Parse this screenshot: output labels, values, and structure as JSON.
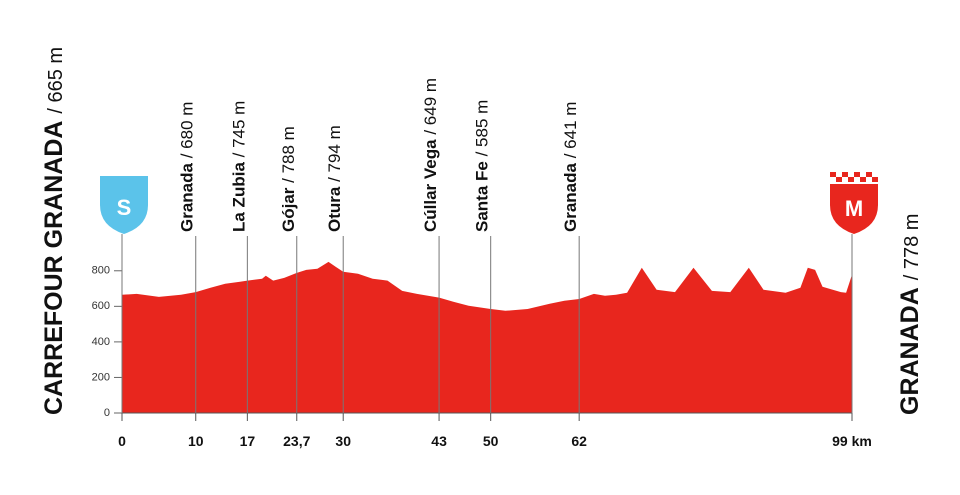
{
  "chart_data": {
    "type": "area",
    "color": "#e8261e",
    "x": [
      0,
      2,
      5,
      8,
      10,
      12,
      14,
      16,
      17,
      19,
      19.5,
      20.5,
      22,
      23.7,
      25,
      26.5,
      28,
      29,
      30,
      32,
      34,
      36,
      38,
      40,
      43,
      45,
      47,
      50,
      52,
      55,
      58,
      60,
      62,
      64,
      65.5,
      67,
      68.5,
      70.5,
      72.5,
      75,
      77.5,
      80,
      82.5,
      85,
      87,
      90,
      92,
      93,
      94,
      95,
      97.5,
      98.2,
      99
    ],
    "values": [
      665,
      670,
      653,
      665,
      680,
      705,
      727,
      738,
      745,
      755,
      772,
      745,
      760,
      788,
      805,
      811,
      850,
      822,
      794,
      783,
      755,
      745,
      687,
      670,
      649,
      625,
      603,
      585,
      575,
      585,
      614,
      631,
      641,
      670,
      659,
      665,
      676,
      817,
      693,
      680,
      817,
      687,
      680,
      817,
      693,
      676,
      705,
      817,
      805,
      710,
      680,
      676,
      778
    ],
    "xlim": [
      0,
      99
    ],
    "xticks": [
      0,
      10,
      17,
      {
        "value": 23.7,
        "label": "23,7"
      },
      30,
      43,
      50,
      62,
      {
        "value": 99,
        "label": "99 km"
      }
    ],
    "ylim": [
      0,
      900
    ],
    "yticks": [
      0,
      200,
      400,
      600,
      800
    ],
    "start": {
      "name": "CARREFOUR GRANADA",
      "detail": "/ 665 m",
      "badge": "S"
    },
    "finish": {
      "name": "GRANADA",
      "detail": "/ 778 m",
      "badge": "M"
    },
    "waypoints": [
      {
        "x": 10,
        "name": "Granada",
        "detail": "/ 680 m"
      },
      {
        "x": 17,
        "name": "La Zubia",
        "detail": "/ 745 m"
      },
      {
        "x": 23.7,
        "name": "Gójar",
        "detail": "/ 788 m"
      },
      {
        "x": 30,
        "name": "Otura",
        "detail": "/ 794 m"
      },
      {
        "x": 43,
        "name": "Cúllar Vega",
        "detail": "/ 649 m"
      },
      {
        "x": 50,
        "name": "Santa Fe",
        "detail": "/ 585 m"
      },
      {
        "x": 62,
        "name": "Granada",
        "detail": "/ 641 m"
      }
    ]
  }
}
